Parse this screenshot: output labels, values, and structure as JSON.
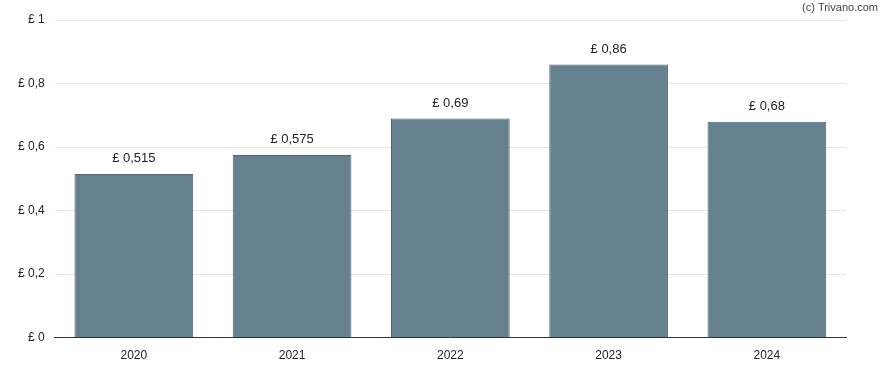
{
  "chart_data": {
    "type": "bar",
    "annotations": [
      "(c) Trivano.com"
    ],
    "categories": [
      "2020",
      "2021",
      "2022",
      "2023",
      "2024"
    ],
    "values": [
      0.515,
      0.575,
      0.69,
      0.86,
      0.68
    ],
    "value_labels": [
      "£ 0,515",
      "£ 0,575",
      "£ 0,69",
      "£ 0,86",
      "£ 0,68"
    ],
    "color": "#65808f",
    "ylim": [
      0,
      1
    ],
    "yticks": [
      {
        "value": 0,
        "label": "£ 0"
      },
      {
        "value": 0.2,
        "label": "£ 0,2"
      },
      {
        "value": 0.4,
        "label": "£ 0,4"
      },
      {
        "value": 0.6,
        "label": "£ 0,6"
      },
      {
        "value": 0.8,
        "label": "£ 0,8"
      },
      {
        "value": 1,
        "label": "£ 1"
      }
    ],
    "grid": true,
    "data_labels": true
  }
}
